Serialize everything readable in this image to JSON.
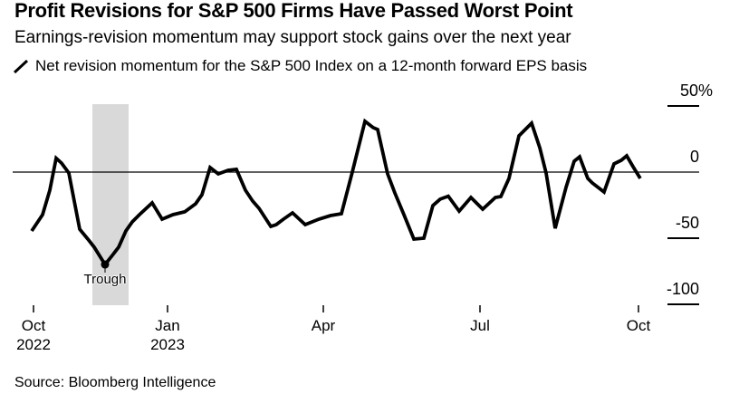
{
  "header": {
    "title": "Profit Revisions for S&P 500 Firms Have Passed Worst Point",
    "subtitle": "Earnings-revision momentum may support stock gains over the next year"
  },
  "legend": {
    "icon": "line-stroke-icon",
    "label": "Net revision momentum for the S&P 500 Index on a 12-month forward EPS basis"
  },
  "source": "Source: Bloomberg Intelligence",
  "colors": {
    "line": "#000000",
    "band": "#d9d9d9",
    "axis": "#000000",
    "background": "#ffffff"
  },
  "chart_data": {
    "type": "line",
    "title": "Profit Revisions for S&P 500 Firms Have Passed Worst Point",
    "series_name": "Net revision momentum for the S&P 500 Index on a 12-month forward EPS basis",
    "unit": "%",
    "ylim": [
      -100,
      50
    ],
    "grid": "zero-line-only",
    "legend_position": "top-left",
    "y_axis": {
      "side": "right",
      "ticks": [
        {
          "label": "50%",
          "value": 50
        },
        {
          "label": "0",
          "value": 0
        },
        {
          "label": "-50",
          "value": -50
        },
        {
          "label": "-100",
          "value": -100
        }
      ]
    },
    "x_axis": {
      "ticks": [
        {
          "label": "Oct",
          "year": "2022",
          "x": 37
        },
        {
          "label": "Jan",
          "year": "2023",
          "x": 185
        },
        {
          "label": "Apr",
          "year": "",
          "x": 357
        },
        {
          "label": "Jul",
          "year": "",
          "x": 530
        },
        {
          "label": "Oct",
          "year": "",
          "x": 705
        }
      ]
    },
    "annotations": {
      "trough": {
        "label": "Trough",
        "x": 116,
        "value": -69.9
      },
      "band": {
        "x1": 102,
        "x2": 142,
        "y1": 115,
        "y2": 337
      }
    },
    "points": [
      [
        35,
        -44.5
      ],
      [
        47,
        -32.2
      ],
      [
        55,
        -13.7
      ],
      [
        62,
        10.5
      ],
      [
        68,
        6.8
      ],
      [
        76,
        -0.7
      ],
      [
        88,
        -43.2
      ],
      [
        97,
        -50.7
      ],
      [
        104,
        -56.8
      ],
      [
        116,
        -69.9
      ],
      [
        124,
        -63.0
      ],
      [
        131,
        -56.8
      ],
      [
        139,
        -44.5
      ],
      [
        146,
        -37.7
      ],
      [
        154,
        -32.2
      ],
      [
        168,
        -23.3
      ],
      [
        179,
        -35.6
      ],
      [
        191,
        -32.2
      ],
      [
        204,
        -30.1
      ],
      [
        216,
        -24.0
      ],
      [
        223,
        -17.1
      ],
      [
        232,
        3.4
      ],
      [
        241,
        -1.4
      ],
      [
        252,
        1.4
      ],
      [
        261,
        2.1
      ],
      [
        271,
        -13.7
      ],
      [
        279,
        -21.9
      ],
      [
        286,
        -27.4
      ],
      [
        299,
        -41.1
      ],
      [
        305,
        -39.7
      ],
      [
        313,
        -35.6
      ],
      [
        323,
        -30.8
      ],
      [
        337,
        -39.7
      ],
      [
        352,
        -35.6
      ],
      [
        365,
        -32.9
      ],
      [
        377,
        -31.5
      ],
      [
        389,
        0.0
      ],
      [
        403,
        38.4
      ],
      [
        412,
        33.6
      ],
      [
        417,
        32.2
      ],
      [
        428,
        -1.4
      ],
      [
        436,
        -15.8
      ],
      [
        446,
        -32.2
      ],
      [
        457,
        -50.7
      ],
      [
        468,
        -50.0
      ],
      [
        478,
        -25.3
      ],
      [
        486,
        -20.5
      ],
      [
        495,
        -18.2
      ],
      [
        507,
        -29.5
      ],
      [
        520,
        -19.2
      ],
      [
        533,
        -28.1
      ],
      [
        547,
        -19.2
      ],
      [
        553,
        -18.5
      ],
      [
        562,
        -4.8
      ],
      [
        573,
        27.4
      ],
      [
        580,
        32.2
      ],
      [
        587,
        37.0
      ],
      [
        596,
        18.5
      ],
      [
        603,
        -0.7
      ],
      [
        613,
        -42.5
      ],
      [
        625,
        -11.6
      ],
      [
        634,
        8.2
      ],
      [
        640,
        11.6
      ],
      [
        649,
        -4.8
      ],
      [
        654,
        -8.2
      ],
      [
        667,
        -15.1
      ],
      [
        678,
        6.2
      ],
      [
        686,
        8.9
      ],
      [
        692,
        12.3
      ],
      [
        699,
        4.1
      ],
      [
        707,
        -4.8
      ]
    ]
  }
}
